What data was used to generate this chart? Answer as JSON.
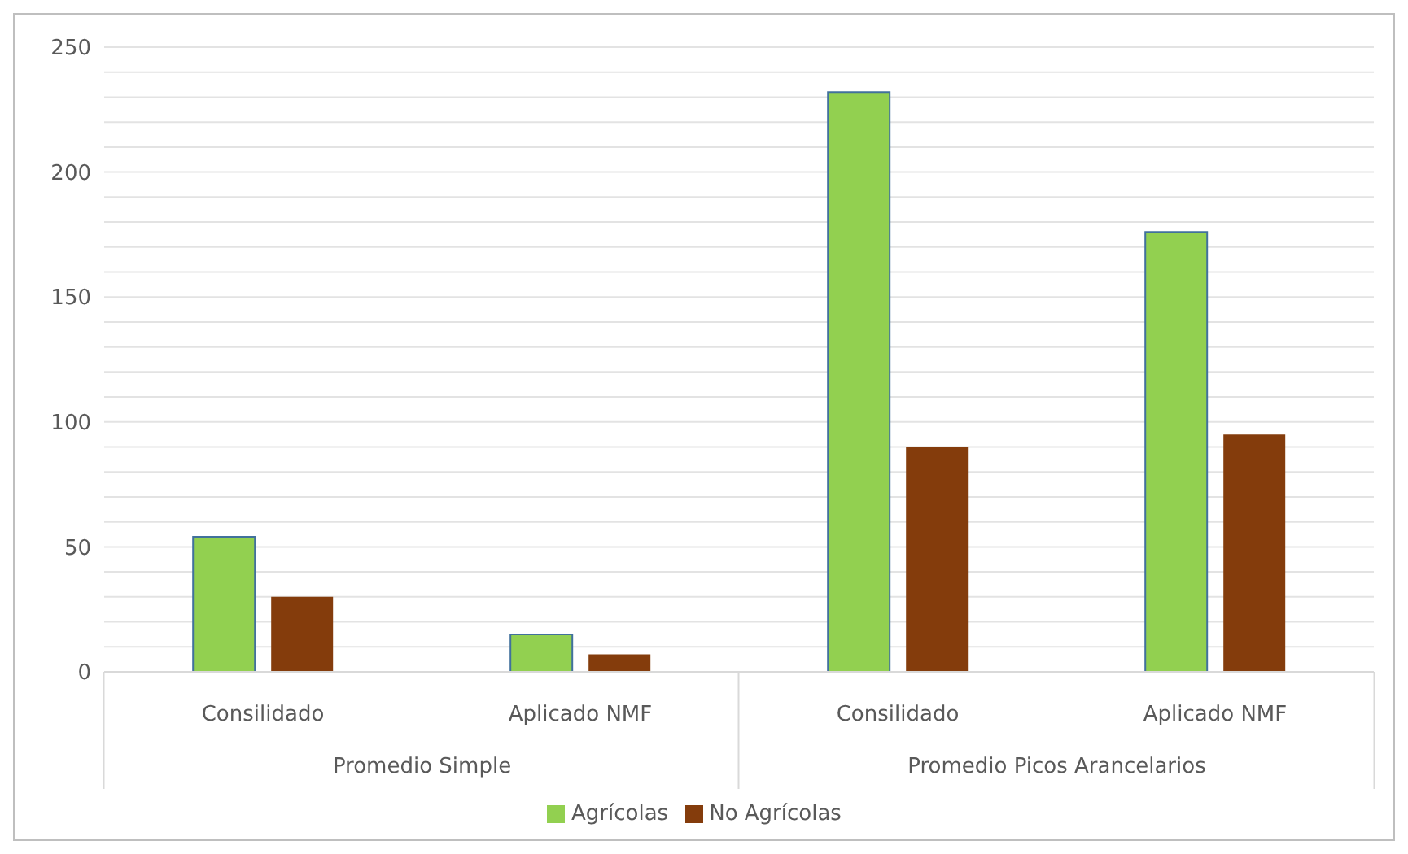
{
  "chart_data": {
    "type": "bar",
    "categories": [
      "Consilidado",
      "Aplicado NMF",
      "Consilidado",
      "Aplicado NMF"
    ],
    "annotations": [
      "Promedio Simple",
      "Promedio Picos Arancelarios"
    ],
    "series": [
      {
        "name": "Agrícolas",
        "color": "#92d050",
        "values": [
          54,
          15,
          232,
          176
        ]
      },
      {
        "name": "No Agrícolas",
        "color": "#843c0c",
        "values": [
          30,
          7,
          90,
          95
        ]
      }
    ],
    "ylim": [
      0,
      250
    ],
    "yticks": [
      0,
      {
        "value": 10,
        "label": null
      },
      {
        "value": 20,
        "label": null
      },
      {
        "value": 30,
        "label": null
      },
      {
        "value": 40,
        "label": null
      },
      50,
      {
        "value": 60,
        "label": null
      },
      {
        "value": 70,
        "label": null
      },
      {
        "value": 80,
        "label": null
      },
      {
        "value": 90,
        "label": null
      },
      100,
      {
        "value": 110,
        "label": null
      },
      {
        "value": 120,
        "label": null
      },
      {
        "value": 130,
        "label": null
      },
      {
        "value": 140,
        "label": null
      },
      150,
      {
        "value": 160,
        "label": null
      },
      {
        "value": 170,
        "label": null
      },
      {
        "value": 180,
        "label": null
      },
      {
        "value": 190,
        "label": null
      },
      200,
      {
        "value": 210,
        "label": null
      },
      {
        "value": 220,
        "label": null
      },
      {
        "value": 230,
        "label": null
      },
      {
        "value": 240,
        "label": null
      },
      250
    ],
    "grid": "y",
    "legend": "bottom"
  }
}
